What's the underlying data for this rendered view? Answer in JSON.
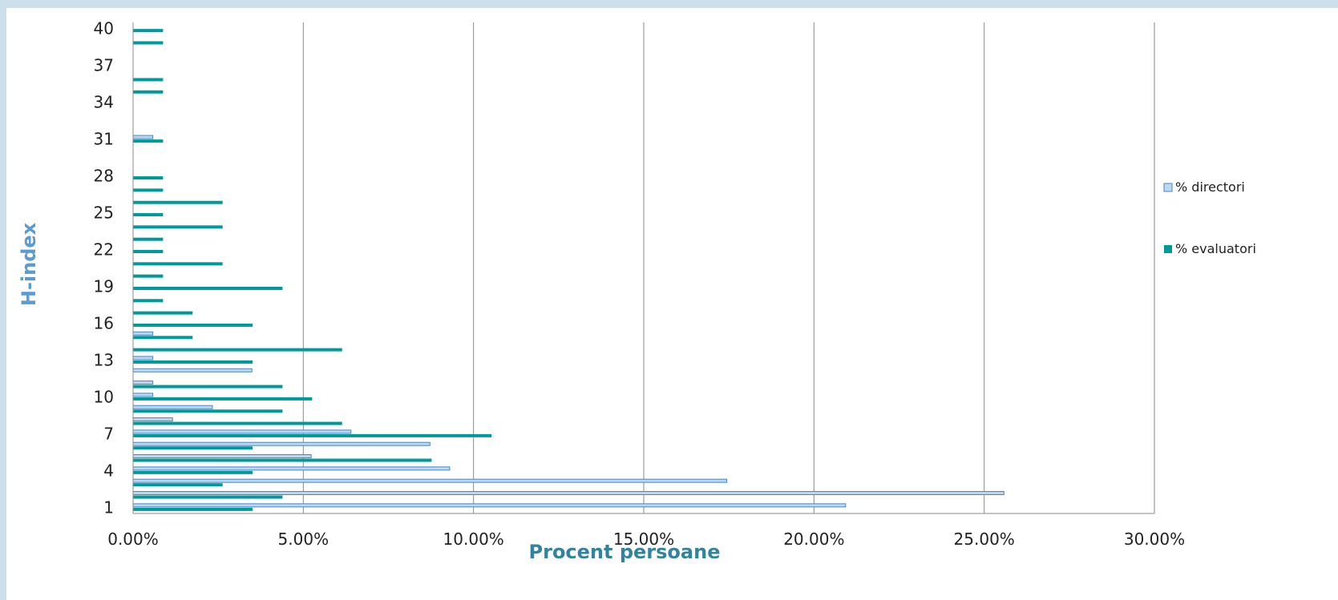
{
  "chart_data": {
    "type": "bar",
    "orientation": "horizontal",
    "xlabel": "Procent persoane",
    "ylabel": "H-index",
    "xlim": [
      0,
      0.3
    ],
    "x_ticks": [
      "0.00%",
      "5.00%",
      "10.00%",
      "15.00%",
      "20.00%",
      "25.00%",
      "30.00%"
    ],
    "y_ticks": [
      "1",
      "4",
      "7",
      "10",
      "13",
      "16",
      "19",
      "22",
      "25",
      "28",
      "31",
      "34",
      "37",
      "40"
    ],
    "grid": "vertical",
    "legend_position": "right",
    "categories": [
      1,
      2,
      3,
      4,
      5,
      6,
      7,
      8,
      9,
      10,
      11,
      12,
      13,
      14,
      15,
      16,
      17,
      18,
      19,
      20,
      21,
      22,
      23,
      24,
      25,
      26,
      27,
      28,
      29,
      30,
      31,
      32,
      33,
      34,
      35,
      36,
      37,
      38,
      39,
      40
    ],
    "series": [
      {
        "name": "% directori",
        "color": "#bdd7ee",
        "values": [
          0.2093,
          0.2558,
          0.1744,
          0.093,
          0.0523,
          0.0872,
          0.064,
          0.0116,
          0.0233,
          0.0058,
          0.0058,
          0.0349,
          0.0058,
          0.0,
          0.0058,
          0.0,
          0.0,
          0,
          0,
          0,
          0,
          0,
          0,
          0,
          0,
          0,
          0,
          0,
          0,
          0,
          0.0058,
          0,
          0,
          0,
          0,
          0,
          0,
          0,
          0,
          0
        ]
      },
      {
        "name": "% evaluatori",
        "color": "#009999",
        "values": [
          0.0351,
          0.0439,
          0.0263,
          0.0351,
          0.0877,
          0.0351,
          0.1053,
          0.0614,
          0.0439,
          0.0526,
          0.0439,
          0.0,
          0.0351,
          0.0614,
          0.0175,
          0.0351,
          0.0175,
          0.0088,
          0.0439,
          0.0088,
          0.0263,
          0.0088,
          0.0088,
          0.0263,
          0.0088,
          0.0263,
          0.0088,
          0.0088,
          0.0,
          0.0,
          0.0088,
          0.0,
          0.0,
          0.0,
          0.0088,
          0.0088,
          0.0,
          0.0,
          0.0088,
          0.0088
        ]
      }
    ]
  }
}
